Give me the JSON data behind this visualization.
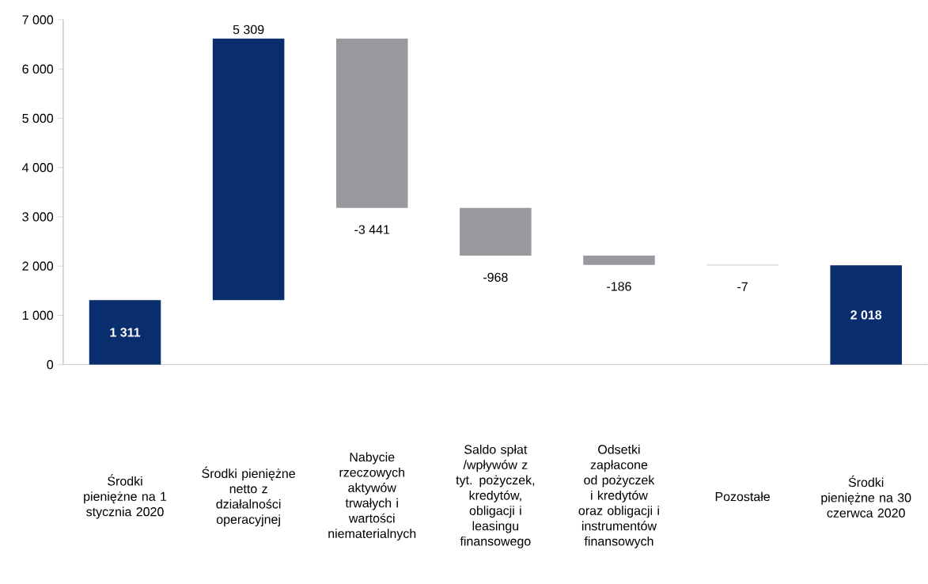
{
  "chart_data": {
    "type": "bar",
    "categories": [
      "Środki pieniężne na 1 stycznia 2020",
      "Środki pieniężne netto z działalności operacyjnej",
      "Nabycie rzeczowych aktywów trwałych i wartości niematerialnych",
      "Saldo spłat /wpływów z tyt. pożyczek, kredytów, obligacji i leasingu finansowego",
      "Odsetki zapłacone od pożyczek i kredytów oraz obligacji i instrumentów finansowych",
      "Pozostałe",
      "Środki pieniężne na 30 czerwca 2020"
    ],
    "values": [
      1311,
      5309,
      -3441,
      -968,
      -186,
      -7,
      2018
    ],
    "base": [
      0,
      1311,
      6620,
      3179,
      2211,
      2025,
      0
    ],
    "colors": [
      "#0a2d6e",
      "#0a2d6e",
      "#9a979e",
      "#9a979e",
      "#9a979e",
      "#9a979e",
      "#0a2d6e"
    ],
    "value_labels": [
      "1 311",
      "5 309",
      "-3 441",
      "-968",
      "-186",
      "-7",
      "2 018"
    ],
    "ylim": [
      0,
      7000
    ],
    "yticks": [
      {
        "value": 0,
        "label": "0"
      },
      {
        "value": 1000,
        "label": "1 000"
      },
      {
        "value": 2000,
        "label": "2 000"
      },
      {
        "value": 3000,
        "label": "3 000"
      },
      {
        "value": 4000,
        "label": "4 000"
      },
      {
        "value": 5000,
        "label": "5 000"
      },
      {
        "value": 6000,
        "label": "6 000"
      },
      {
        "value": 7000,
        "label": "7 000"
      }
    ],
    "grid": false
  }
}
